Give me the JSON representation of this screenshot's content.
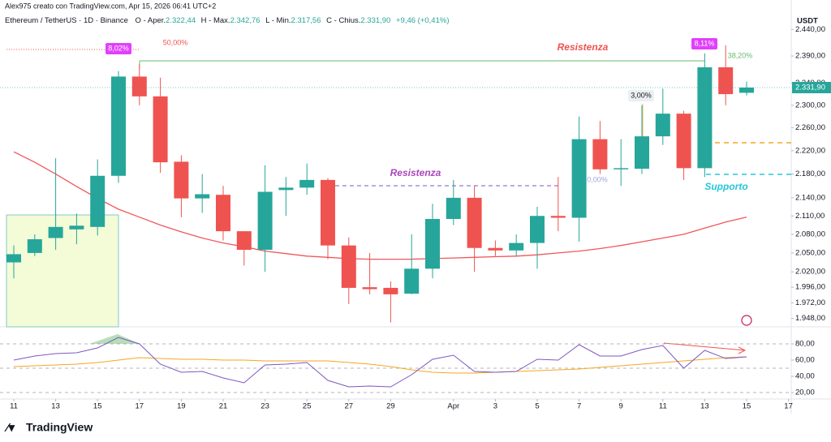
{
  "chart_data": {
    "type": "candlestick",
    "header": {
      "credit": "Alex975 creato con TradingView.com, Apr 15, 2026 06:41 UTC+2",
      "symbol": "Ethereum / TetherUS · 1D · Binance",
      "open_label": "O - Aper.",
      "open": "2.322,44",
      "high_label": "H - Max.",
      "high": "2.342,76",
      "low_label": "L - Min.",
      "low": "2.317,56",
      "close_label": "C - Chius.",
      "close": "2.331,90",
      "change": "+9,46 (+0,41%)"
    },
    "currency": "USDT",
    "categories": [
      "11",
      null,
      "13",
      null,
      "15",
      null,
      "17",
      null,
      "19",
      null,
      "21",
      null,
      "23",
      null,
      "25",
      null,
      "27",
      null,
      "29",
      null,
      null,
      "Apr",
      null,
      "3",
      null,
      "5",
      null,
      "7",
      null,
      "9",
      null,
      "11",
      null,
      "13",
      null,
      "15"
    ],
    "future_categories": [
      null,
      "17"
    ],
    "open": [
      2035,
      2050,
      2074,
      2088,
      2092,
      2177,
      2352,
      2316,
      2201,
      2139,
      2145,
      2085,
      2055,
      2153,
      2157,
      2170,
      2062,
      1996,
      1995,
      1986,
      2025,
      2105,
      2140,
      2058,
      2054,
      2066,
      2110,
      2107,
      2240,
      2188,
      2189,
      2245,
      2285,
      2190,
      2369,
      2322.44
    ],
    "high": [
      2062,
      2080,
      2207,
      2114,
      2205,
      2362,
      2375,
      2350,
      2212,
      2180,
      2160,
      2085,
      2195,
      2175,
      2198,
      2173,
      2075,
      2050,
      2005,
      2080,
      2130,
      2170,
      2160,
      2070,
      2080,
      2125,
      2175,
      2280,
      2272,
      2240,
      2300,
      2330,
      2290,
      2395,
      2410,
      2342.76
    ],
    "low": [
      2010,
      2045,
      2055,
      2064,
      2078,
      2165,
      2300,
      2182,
      2108,
      2115,
      2070,
      2030,
      2020,
      2110,
      2145,
      2040,
      1970,
      1985,
      1942,
      1985,
      2010,
      2095,
      2020,
      2045,
      2045,
      2025,
      2085,
      2068,
      2180,
      2160,
      2180,
      2230,
      2170,
      2175,
      2300,
      2317.56
    ],
    "close": [
      2048,
      2072,
      2092,
      2094,
      2177,
      2352,
      2316,
      2200,
      2139,
      2146,
      2085,
      2055,
      2150,
      2157,
      2170,
      2062,
      1995,
      1993,
      1985,
      2025,
      2105,
      2140,
      2058,
      2054,
      2066,
      2110,
      2107,
      2240,
      2188,
      2190,
      2245,
      2285,
      2190,
      2369,
      2320,
      2331.9
    ],
    "up_color": "#26a69a",
    "down_color": "#ef5350",
    "ma": {
      "color": "#f0575a",
      "values": [
        2218,
        2200,
        2180,
        2159,
        2139,
        2121,
        2108,
        2095,
        2084,
        2074,
        2066,
        2060,
        2053,
        2049,
        2045,
        2043,
        2041,
        2040,
        2040,
        2040,
        2041,
        2042,
        2043,
        2044,
        2045,
        2047,
        2050,
        2053,
        2057,
        2062,
        2068,
        2074,
        2080,
        2090,
        2100,
        2108
      ]
    },
    "ylim": [
      1939,
      2473
    ],
    "log_scale": true,
    "yticks": [
      {
        "value": 2440,
        "label": "2.440,00"
      },
      {
        "value": 2390,
        "label": "2.390,00"
      },
      {
        "value": 2340,
        "label": "2.340,00"
      },
      {
        "value": 2300,
        "label": "2.300,00"
      },
      {
        "value": 2260,
        "label": "2.260,00"
      },
      {
        "value": 2220,
        "label": "2.220,00"
      },
      {
        "value": 2180,
        "label": "2.180,00"
      },
      {
        "value": 2140,
        "label": "2.140,00"
      },
      {
        "value": 2110,
        "label": "2.110,00"
      },
      {
        "value": 2080,
        "label": "2.080,00"
      },
      {
        "value": 2050,
        "label": "2.050,00"
      },
      {
        "value": 2020,
        "label": "2.020,00"
      },
      {
        "value": 1996,
        "label": "1.996,00"
      },
      {
        "value": 1972,
        "label": "1.972,00"
      },
      {
        "value": 1948,
        "label": "1.948,00"
      }
    ],
    "rsi": {
      "color": "#7e57c2",
      "signal_color": "#f5a623",
      "values": [
        60,
        65,
        68,
        69,
        75,
        88,
        80,
        55,
        45,
        46,
        38,
        32,
        54,
        55,
        57,
        35,
        27,
        28,
        27,
        42,
        61,
        66,
        46,
        45,
        46,
        61,
        60,
        79,
        65,
        65,
        73,
        78,
        50,
        72,
        62,
        64
      ],
      "signal": [
        52,
        53,
        54,
        55,
        57,
        60,
        63,
        62,
        61,
        61,
        60,
        60,
        59,
        59,
        59,
        59,
        57,
        55,
        52,
        48,
        45,
        44,
        44,
        45,
        46,
        47,
        48,
        49,
        51,
        53,
        55,
        57,
        59,
        61,
        63,
        64
      ],
      "ylim": [
        14,
        99
      ],
      "yticks": [
        {
          "value": 80,
          "label": "80,00"
        },
        {
          "value": 60,
          "label": "60,00"
        },
        {
          "value": 40,
          "label": "40,00"
        },
        {
          "value": 20,
          "label": "20,00"
        }
      ],
      "bands": [
        80,
        50,
        20
      ]
    },
    "annotations": {
      "resistance_top": "Resistenza",
      "resistance_mid": "Resistenza",
      "support": "Supporto",
      "fib_50": "50,00%",
      "fib_382": "38,20%",
      "fib_0": "0,00%",
      "pct_1": "8,02%",
      "pct_2": "8,11%",
      "pct_3": "3,00%"
    },
    "brand": "TradingView"
  }
}
